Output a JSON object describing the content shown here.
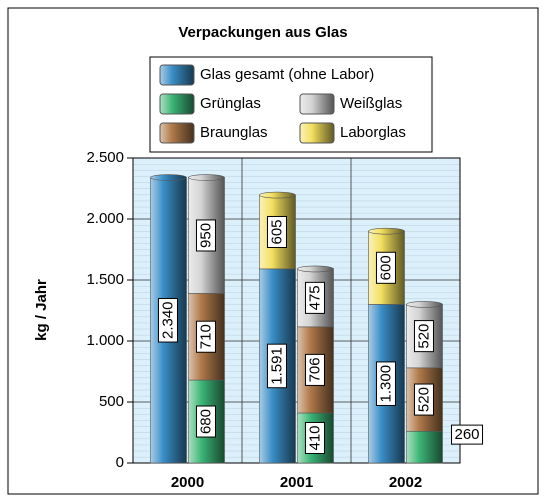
{
  "chart_data": {
    "type": "bar",
    "title": "Verpackungen aus Glas",
    "y_label": "kg / Jahr",
    "categories": [
      "2000",
      "2001",
      "2002"
    ],
    "series": [
      {
        "name": "Glas gesamt (ohne Labor)",
        "color": "#3a8fc8",
        "values": [
          2340,
          1591,
          1300
        ],
        "value_labels": [
          "2.340",
          "1.591",
          "1.300"
        ]
      },
      {
        "name": "Grünglas",
        "color": "#3cb878",
        "values": [
          680,
          410,
          260
        ]
      },
      {
        "name": "Braunglas",
        "color": "#b07a4a",
        "values": [
          710,
          706,
          520
        ]
      },
      {
        "name": "Weißglas",
        "color": "#d4d4d4",
        "values": [
          950,
          475,
          520
        ]
      },
      {
        "name": "Laborglas",
        "color": "#f3e05e",
        "values": [
          null,
          605,
          600
        ]
      }
    ],
    "ylim": [
      0,
      2500
    ],
    "yticks": [
      0,
      500,
      {
        "value": 1000,
        "label": "1.000"
      },
      {
        "value": 1500,
        "label": "1.500"
      },
      {
        "value": 2000,
        "label": "2.000"
      },
      {
        "value": 2500,
        "label": "2.500"
      }
    ],
    "grid": true
  }
}
